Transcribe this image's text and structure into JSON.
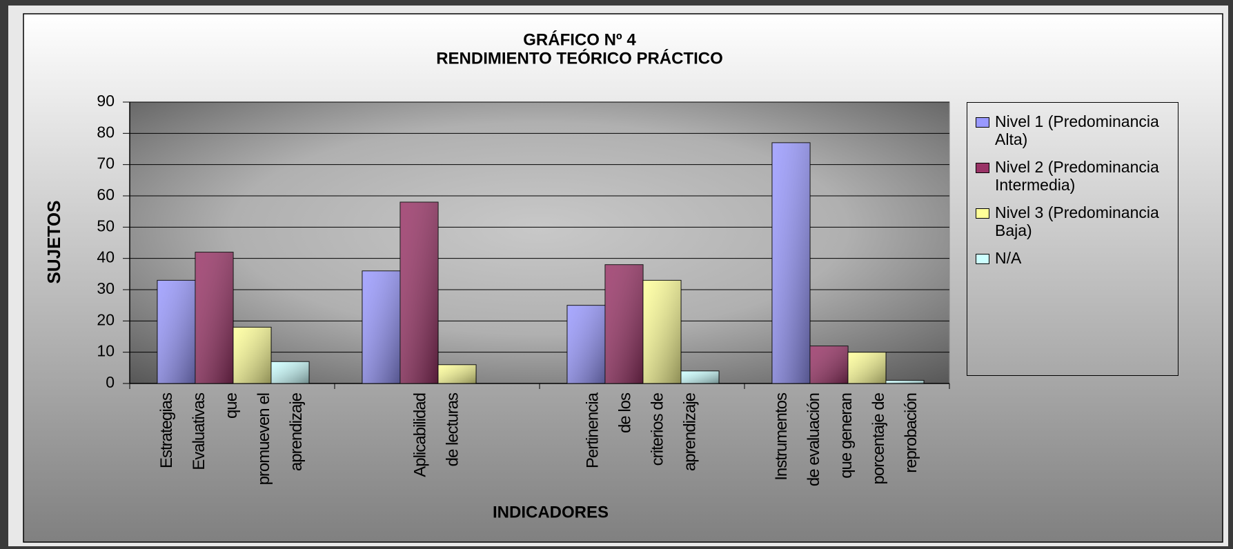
{
  "chart_data": {
    "type": "bar",
    "title": [
      "GRÁFICO Nº 4",
      "RENDIMIENTO TEÓRICO PRÁCTICO"
    ],
    "x_label": "INDICADORES",
    "y_label": "SUJETOS",
    "categories": [
      [
        "Estrategias",
        "Evaluativas",
        "que",
        "promueven el",
        "aprendizaje"
      ],
      [
        "Aplicabilidad",
        "de lecturas"
      ],
      [
        "Pertinencia",
        "de los",
        "criterios de",
        "aprendizaje"
      ],
      [
        "Instrumentos",
        "de evaluación",
        "que generan",
        "porcentaje de",
        "reprobación"
      ]
    ],
    "series": [
      {
        "name": "Nivel 1 (Predominancia Alta)",
        "color": "#9999ff",
        "values": [
          33,
          36,
          25,
          77
        ]
      },
      {
        "name": "Nivel 2 (Predominancia Intermedia)",
        "color": "#993366",
        "values": [
          42,
          58,
          38,
          12
        ]
      },
      {
        "name": "Nivel 3 (Predominancia Baja)",
        "color": "#ffff99",
        "values": [
          18,
          6,
          33,
          10
        ]
      },
      {
        "name": "N/A",
        "color": "#ccffff",
        "values": [
          7,
          0,
          4,
          1
        ]
      }
    ],
    "ylim": [
      0,
      90
    ],
    "yticks": [
      0,
      10,
      20,
      30,
      40,
      50,
      60,
      70,
      80,
      90
    ],
    "grid": true,
    "legend": "right"
  }
}
